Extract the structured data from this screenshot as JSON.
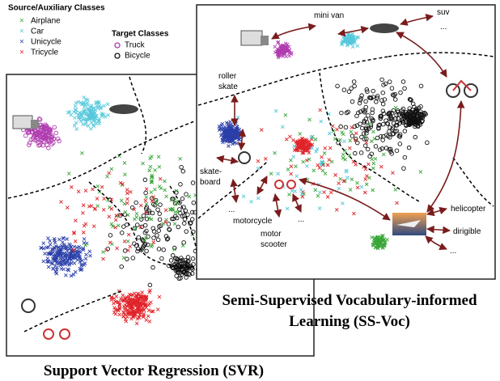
{
  "legend": {
    "source_title": "Source/Auxiliary Classes",
    "source_classes": [
      "Airplane",
      "Car",
      "Unicycle",
      "Tricycle"
    ],
    "target_title": "Target Classes",
    "target_classes": [
      "Truck",
      "Bicycle"
    ]
  },
  "svr": {
    "caption": "Support Vector Regression (SVR)"
  },
  "ssvoc": {
    "caption_lines": [
      "Semi-Supervised Vocabulary-informed",
      "Learning (SS-Voc)"
    ],
    "labels": [
      [
        "mini van"
      ],
      [
        "suv"
      ],
      [
        "..."
      ],
      [
        "roller",
        "skate"
      ],
      [
        "skate-",
        "board"
      ],
      [
        "..."
      ],
      [
        "motorcycle"
      ],
      [
        "motor",
        "scooter"
      ],
      [
        "..."
      ],
      [
        "helicopter"
      ],
      [
        "dirigible"
      ],
      [
        "..."
      ]
    ]
  }
}
